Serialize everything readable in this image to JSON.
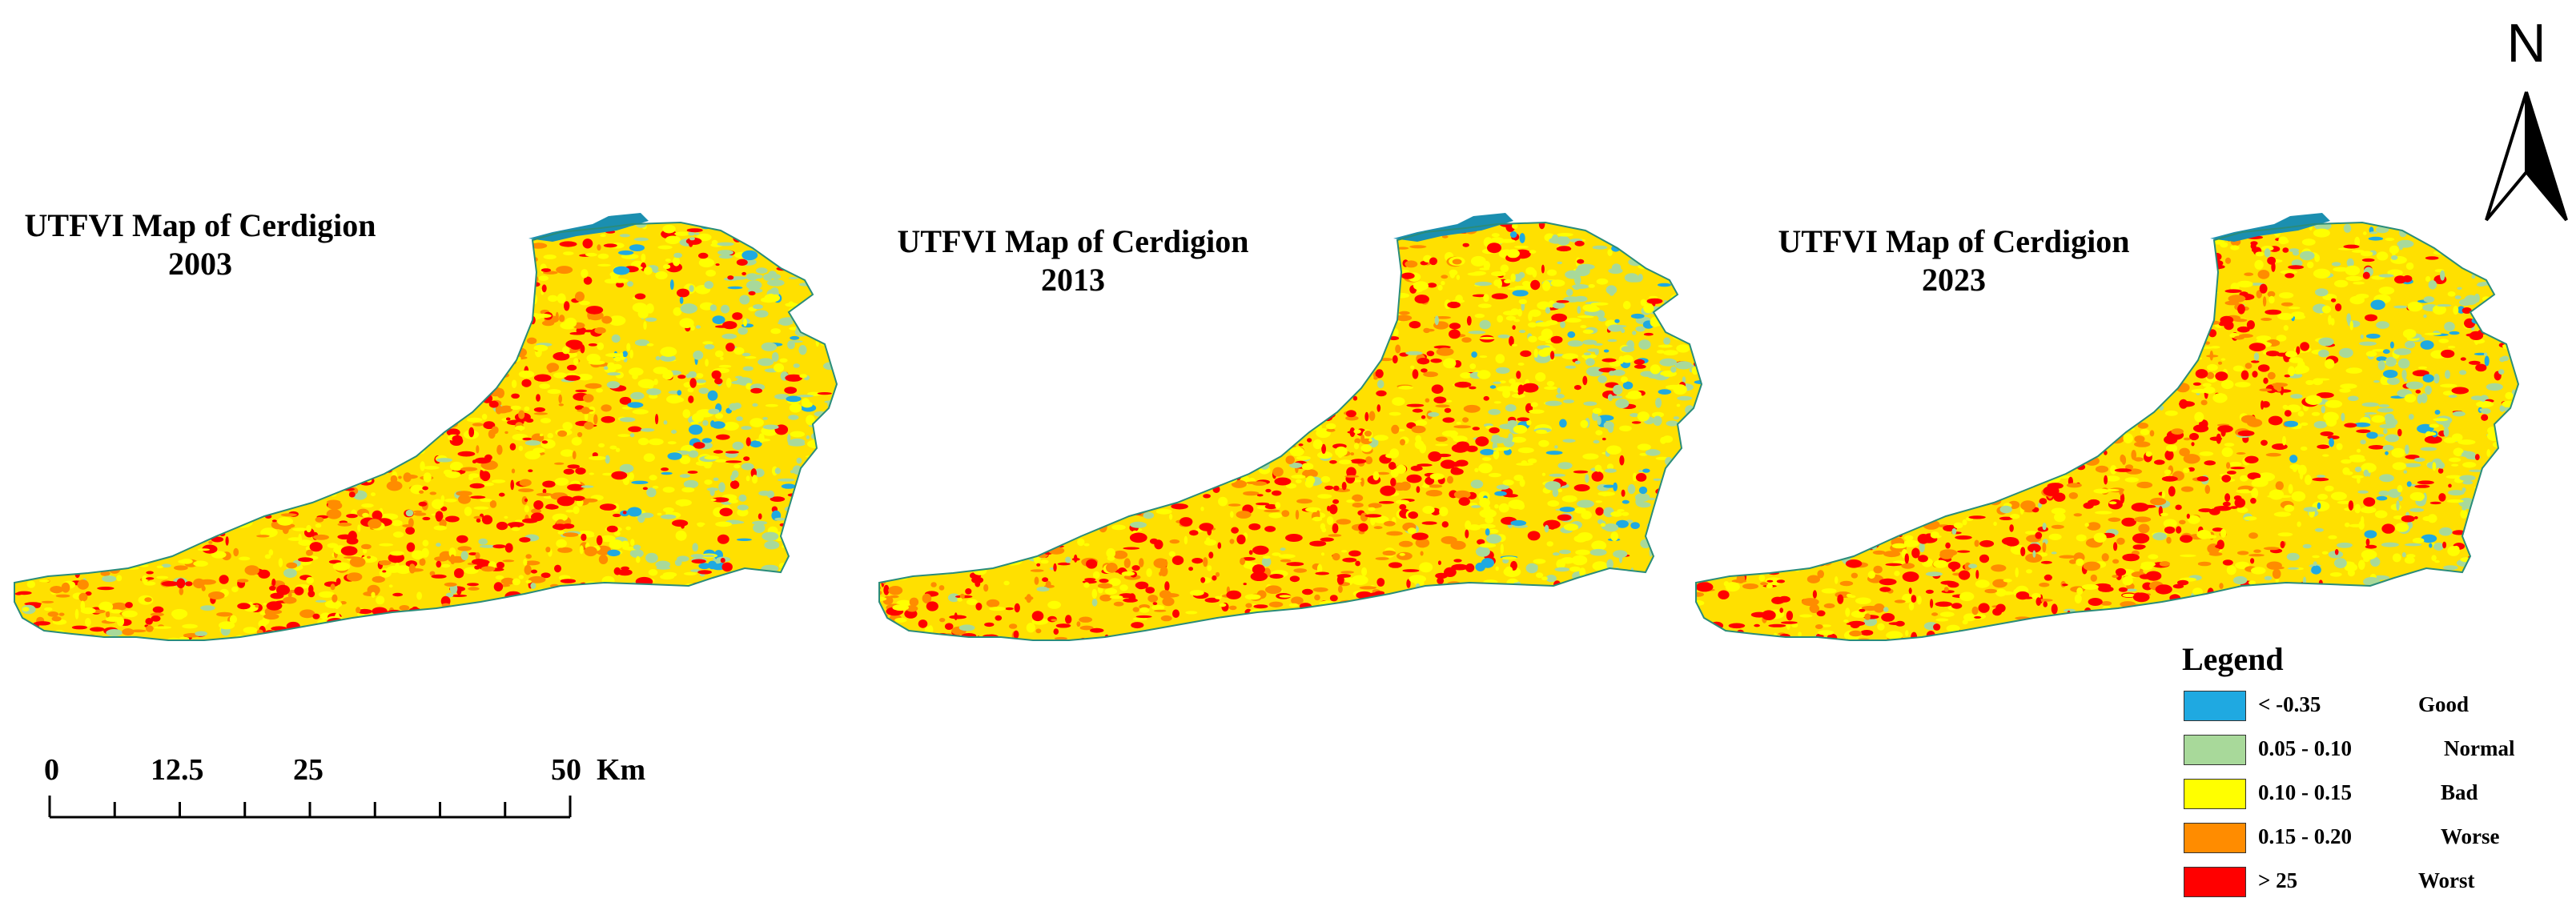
{
  "maps": [
    {
      "id": "2003",
      "title": "UTFVI Map of Cerdigion",
      "year": "2003"
    },
    {
      "id": "2013",
      "title": "UTFVI Map of Cerdigion",
      "year": "2013"
    },
    {
      "id": "2023",
      "title": "UTFVI Map of Cerdigion",
      "year": "2023"
    }
  ],
  "north_label": "N",
  "scale": {
    "ticks": [
      "0",
      "12.5",
      "25",
      "50"
    ],
    "unit": "Km"
  },
  "legend": {
    "title": "Legend",
    "items": [
      {
        "range": "< -0.35",
        "label": "Good",
        "color": "#1fa9e1"
      },
      {
        "range": "0.05 - 0.10",
        "label": "Normal",
        "color": "#a8d99a"
      },
      {
        "range": "0.10 - 0.15",
        "label": "Bad",
        "color": "#ffff00"
      },
      {
        "range": "0.15 - 0.20",
        "label": "Worse",
        "color": "#ff8c00"
      },
      {
        "range": "> 25",
        "label": "Worst",
        "color": "#ff0000"
      }
    ]
  }
}
